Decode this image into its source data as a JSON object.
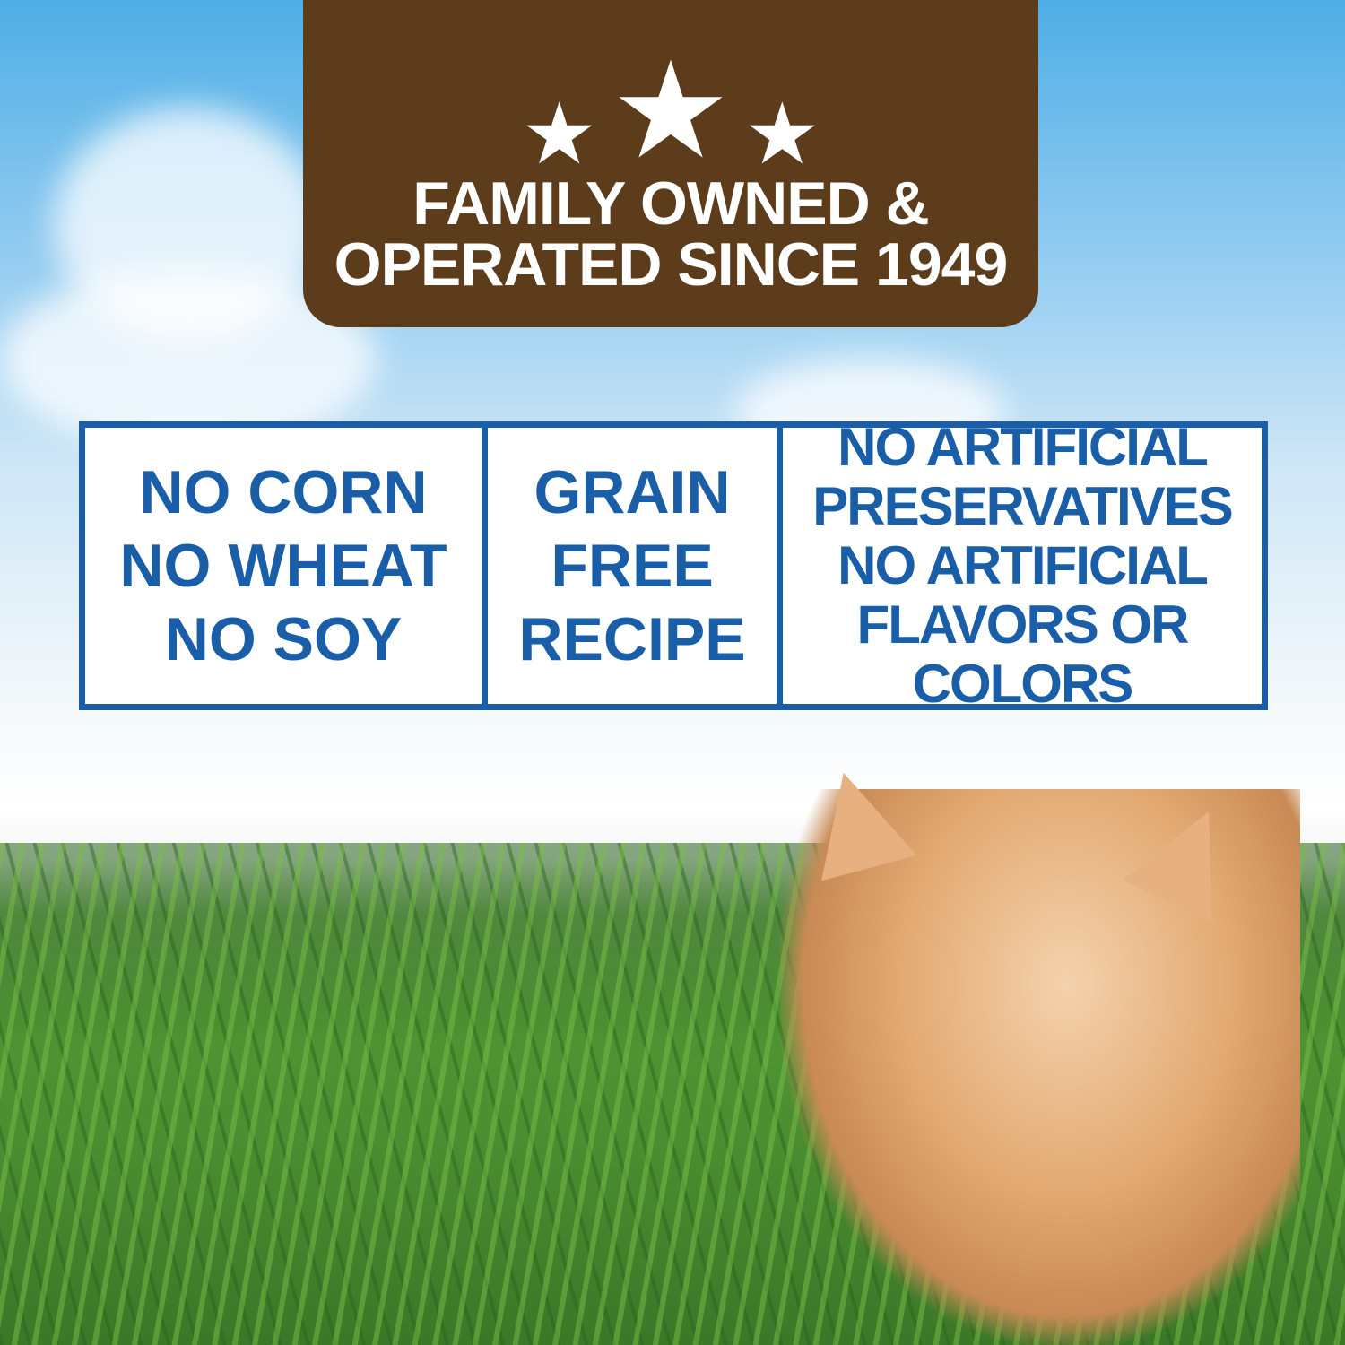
{
  "banner": {
    "line1": "FAMILY OWNED &",
    "line2": "OPERATED SINCE 1949",
    "icons": [
      "star-icon",
      "star-icon",
      "star-icon"
    ],
    "color": "#5c3c1b"
  },
  "claims": {
    "color": "#1a5ea8",
    "box1": [
      "NO CORN",
      "NO WHEAT",
      "NO SOY"
    ],
    "box2": [
      "GRAIN",
      "FREE",
      "RECIPE"
    ],
    "box3": [
      "NO ARTIFICIAL",
      "PRESERVATIVES",
      "NO ARTIFICIAL",
      "FLAVORS OR COLORS"
    ]
  }
}
